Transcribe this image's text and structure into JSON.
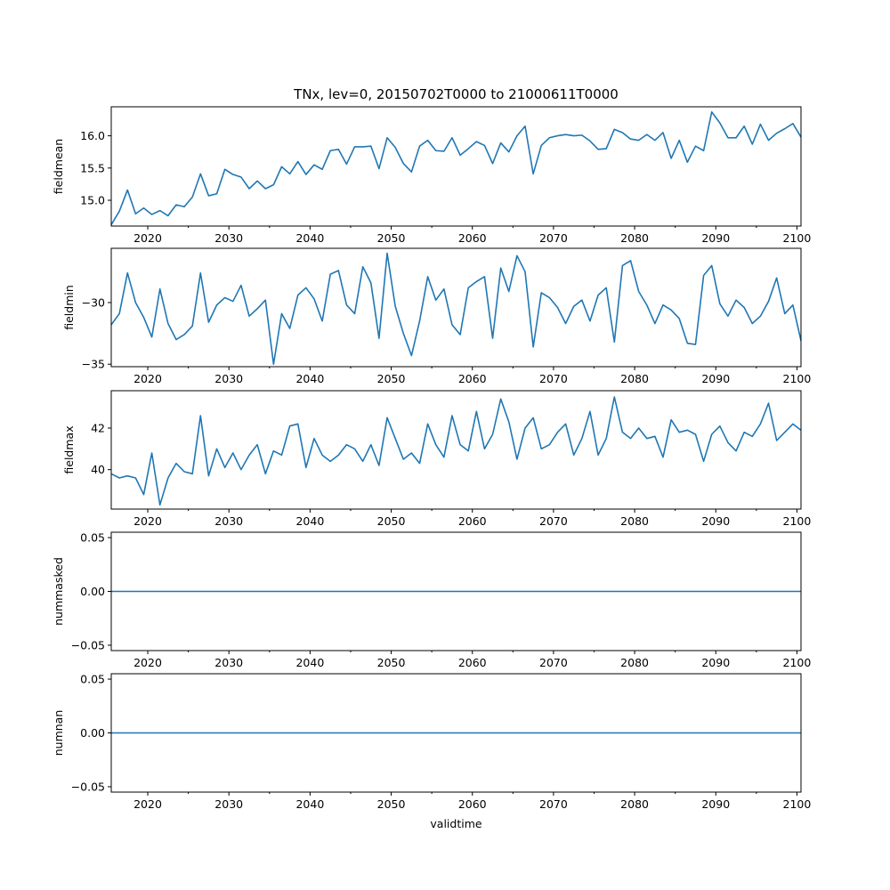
{
  "figure": {
    "title": "TNx, lev=0, 20150702T0000 to 21000611T0000",
    "xlabel": "validtime"
  },
  "colors": {
    "line": "#1f77b4",
    "axes": "#000000",
    "background": "#ffffff"
  },
  "chart_data": [
    {
      "type": "line",
      "ylabel": "fieldmean",
      "xlim": [
        2015.5,
        2100.5
      ],
      "ylim": [
        14.6,
        16.45
      ],
      "xticks": [
        2020,
        2030,
        2040,
        2050,
        2060,
        2070,
        2080,
        2090,
        2100
      ],
      "yticks": [
        15.0,
        15.5,
        16.0
      ],
      "ytick_labels": [
        "15.0",
        "15.5",
        "16.0"
      ],
      "x": [
        2015.5,
        2016.5,
        2017.5,
        2018.5,
        2019.5,
        2020.5,
        2021.5,
        2022.5,
        2023.5,
        2024.5,
        2025.5,
        2026.5,
        2027.5,
        2028.5,
        2029.5,
        2030.5,
        2031.5,
        2032.5,
        2033.5,
        2034.5,
        2035.5,
        2036.5,
        2037.5,
        2038.5,
        2039.5,
        2040.5,
        2041.5,
        2042.5,
        2043.5,
        2044.5,
        2045.5,
        2046.5,
        2047.5,
        2048.5,
        2049.5,
        2050.5,
        2051.5,
        2052.5,
        2053.5,
        2054.5,
        2055.5,
        2056.5,
        2057.5,
        2058.5,
        2059.5,
        2060.5,
        2061.5,
        2062.5,
        2063.5,
        2064.5,
        2065.5,
        2066.5,
        2067.5,
        2068.5,
        2069.5,
        2070.5,
        2071.5,
        2072.5,
        2073.5,
        2074.5,
        2075.5,
        2076.5,
        2077.5,
        2078.5,
        2079.5,
        2080.5,
        2081.5,
        2082.5,
        2083.5,
        2084.5,
        2085.5,
        2086.5,
        2087.5,
        2088.5,
        2089.5,
        2090.5,
        2091.5,
        2092.5,
        2093.5,
        2094.5,
        2095.5,
        2096.5,
        2097.5,
        2098.5,
        2099.5,
        2100.5
      ],
      "values": [
        14.62,
        14.83,
        15.16,
        14.79,
        14.88,
        14.78,
        14.84,
        14.76,
        14.93,
        14.9,
        15.05,
        15.41,
        15.07,
        15.1,
        15.48,
        15.4,
        15.36,
        15.18,
        15.3,
        15.18,
        15.24,
        15.52,
        15.41,
        15.6,
        15.4,
        15.55,
        15.48,
        15.77,
        15.79,
        15.56,
        15.83,
        15.83,
        15.84,
        15.49,
        15.97,
        15.82,
        15.57,
        15.44,
        15.84,
        15.93,
        15.77,
        15.76,
        15.97,
        15.7,
        15.8,
        15.91,
        15.85,
        15.57,
        15.89,
        15.75,
        16.0,
        16.15,
        15.41,
        15.85,
        15.97,
        16.0,
        16.02,
        16.0,
        16.01,
        15.92,
        15.79,
        15.8,
        16.1,
        16.05,
        15.95,
        15.93,
        16.02,
        15.93,
        16.05,
        15.65,
        15.93,
        15.59,
        15.84,
        15.77,
        16.37,
        16.2,
        15.97,
        15.97,
        16.15,
        15.87,
        16.18,
        15.93,
        16.04,
        16.11,
        16.19,
        15.98
      ]
    },
    {
      "type": "line",
      "ylabel": "fieldmin",
      "xlim": [
        2015.5,
        2100.5
      ],
      "ylim": [
        -35.2,
        -25.6
      ],
      "xticks": [
        2020,
        2030,
        2040,
        2050,
        2060,
        2070,
        2080,
        2090,
        2100
      ],
      "yticks": [
        -35,
        -30
      ],
      "ytick_labels": [
        "−35",
        "−30"
      ],
      "x": [
        2015.5,
        2016.5,
        2017.5,
        2018.5,
        2019.5,
        2020.5,
        2021.5,
        2022.5,
        2023.5,
        2024.5,
        2025.5,
        2026.5,
        2027.5,
        2028.5,
        2029.5,
        2030.5,
        2031.5,
        2032.5,
        2033.5,
        2034.5,
        2035.5,
        2036.5,
        2037.5,
        2038.5,
        2039.5,
        2040.5,
        2041.5,
        2042.5,
        2043.5,
        2044.5,
        2045.5,
        2046.5,
        2047.5,
        2048.5,
        2049.5,
        2050.5,
        2051.5,
        2052.5,
        2053.5,
        2054.5,
        2055.5,
        2056.5,
        2057.5,
        2058.5,
        2059.5,
        2060.5,
        2061.5,
        2062.5,
        2063.5,
        2064.5,
        2065.5,
        2066.5,
        2067.5,
        2068.5,
        2069.5,
        2070.5,
        2071.5,
        2072.5,
        2073.5,
        2074.5,
        2075.5,
        2076.5,
        2077.5,
        2078.5,
        2079.5,
        2080.5,
        2081.5,
        2082.5,
        2083.5,
        2084.5,
        2085.5,
        2086.5,
        2087.5,
        2088.5,
        2089.5,
        2090.5,
        2091.5,
        2092.5,
        2093.5,
        2094.5,
        2095.5,
        2096.5,
        2097.5,
        2098.5,
        2099.5,
        2100.5
      ],
      "values": [
        -31.8,
        -30.9,
        -27.6,
        -30.0,
        -31.2,
        -32.8,
        -28.9,
        -31.7,
        -33.0,
        -32.6,
        -31.9,
        -27.6,
        -31.6,
        -30.2,
        -29.6,
        -29.9,
        -28.6,
        -31.1,
        -30.5,
        -29.8,
        -35.0,
        -30.9,
        -32.1,
        -29.4,
        -28.8,
        -29.7,
        -31.5,
        -27.7,
        -27.4,
        -30.2,
        -30.9,
        -27.1,
        -28.4,
        -32.9,
        -26.0,
        -30.3,
        -32.5,
        -34.3,
        -31.5,
        -27.9,
        -29.8,
        -28.9,
        -31.8,
        -32.6,
        -28.8,
        -28.3,
        -27.9,
        -32.9,
        -27.2,
        -29.1,
        -26.2,
        -27.5,
        -33.6,
        -29.2,
        -29.6,
        -30.4,
        -31.7,
        -30.3,
        -29.8,
        -31.5,
        -29.4,
        -28.8,
        -33.2,
        -27.0,
        -26.6,
        -29.1,
        -30.2,
        -31.7,
        -30.2,
        -30.6,
        -31.3,
        -33.3,
        -33.4,
        -27.8,
        -27.0,
        -30.1,
        -31.1,
        -29.8,
        -30.4,
        -31.7,
        -31.1,
        -29.9,
        -28.0,
        -30.9,
        -30.2,
        -33.1
      ]
    },
    {
      "type": "line",
      "ylabel": "fieldmax",
      "xlim": [
        2015.5,
        2100.5
      ],
      "ylim": [
        38.1,
        43.8
      ],
      "xticks": [
        2020,
        2030,
        2040,
        2050,
        2060,
        2070,
        2080,
        2090,
        2100
      ],
      "yticks": [
        40,
        42
      ],
      "ytick_labels": [
        "40",
        "42"
      ],
      "x": [
        2015.5,
        2016.5,
        2017.5,
        2018.5,
        2019.5,
        2020.5,
        2021.5,
        2022.5,
        2023.5,
        2024.5,
        2025.5,
        2026.5,
        2027.5,
        2028.5,
        2029.5,
        2030.5,
        2031.5,
        2032.5,
        2033.5,
        2034.5,
        2035.5,
        2036.5,
        2037.5,
        2038.5,
        2039.5,
        2040.5,
        2041.5,
        2042.5,
        2043.5,
        2044.5,
        2045.5,
        2046.5,
        2047.5,
        2048.5,
        2049.5,
        2050.5,
        2051.5,
        2052.5,
        2053.5,
        2054.5,
        2055.5,
        2056.5,
        2057.5,
        2058.5,
        2059.5,
        2060.5,
        2061.5,
        2062.5,
        2063.5,
        2064.5,
        2065.5,
        2066.5,
        2067.5,
        2068.5,
        2069.5,
        2070.5,
        2071.5,
        2072.5,
        2073.5,
        2074.5,
        2075.5,
        2076.5,
        2077.5,
        2078.5,
        2079.5,
        2080.5,
        2081.5,
        2082.5,
        2083.5,
        2084.5,
        2085.5,
        2086.5,
        2087.5,
        2088.5,
        2089.5,
        2090.5,
        2091.5,
        2092.5,
        2093.5,
        2094.5,
        2095.5,
        2096.5,
        2097.5,
        2098.5,
        2099.5,
        2100.5
      ],
      "values": [
        39.8,
        39.6,
        39.7,
        39.6,
        38.8,
        40.8,
        38.3,
        39.6,
        40.3,
        39.9,
        39.8,
        42.6,
        39.7,
        41.0,
        40.1,
        40.8,
        40.0,
        40.7,
        41.2,
        39.8,
        40.9,
        40.7,
        42.1,
        42.2,
        40.1,
        41.5,
        40.7,
        40.4,
        40.7,
        41.2,
        41.0,
        40.4,
        41.2,
        40.2,
        42.5,
        41.5,
        40.5,
        40.8,
        40.3,
        42.2,
        41.2,
        40.6,
        42.6,
        41.2,
        40.9,
        42.8,
        41.0,
        41.7,
        43.4,
        42.3,
        40.5,
        42.0,
        42.5,
        41.0,
        41.2,
        41.8,
        42.2,
        40.7,
        41.5,
        42.8,
        40.7,
        41.5,
        43.5,
        41.8,
        41.5,
        42.0,
        41.5,
        41.6,
        40.6,
        42.4,
        41.8,
        41.9,
        41.7,
        40.4,
        41.7,
        42.1,
        41.3,
        40.9,
        41.8,
        41.6,
        42.2,
        43.2,
        41.4,
        41.8,
        42.2,
        41.9
      ]
    },
    {
      "type": "line",
      "ylabel": "nummasked",
      "xlim": [
        2015.5,
        2100.5
      ],
      "ylim": [
        -0.055,
        0.055
      ],
      "xticks": [
        2020,
        2030,
        2040,
        2050,
        2060,
        2070,
        2080,
        2090,
        2100
      ],
      "yticks": [
        -0.05,
        0.0,
        0.05
      ],
      "ytick_labels": [
        "−0.05",
        "0.00",
        "0.05"
      ],
      "x": [
        2015.5,
        2100.5
      ],
      "values": [
        0.0,
        0.0
      ]
    },
    {
      "type": "line",
      "ylabel": "numnan",
      "xlim": [
        2015.5,
        2100.5
      ],
      "ylim": [
        -0.055,
        0.055
      ],
      "xticks": [
        2020,
        2030,
        2040,
        2050,
        2060,
        2070,
        2080,
        2090,
        2100
      ],
      "yticks": [
        -0.05,
        0.0,
        0.05
      ],
      "ytick_labels": [
        "−0.05",
        "0.00",
        "0.05"
      ],
      "x": [
        2015.5,
        2100.5
      ],
      "values": [
        0.0,
        0.0
      ]
    }
  ]
}
